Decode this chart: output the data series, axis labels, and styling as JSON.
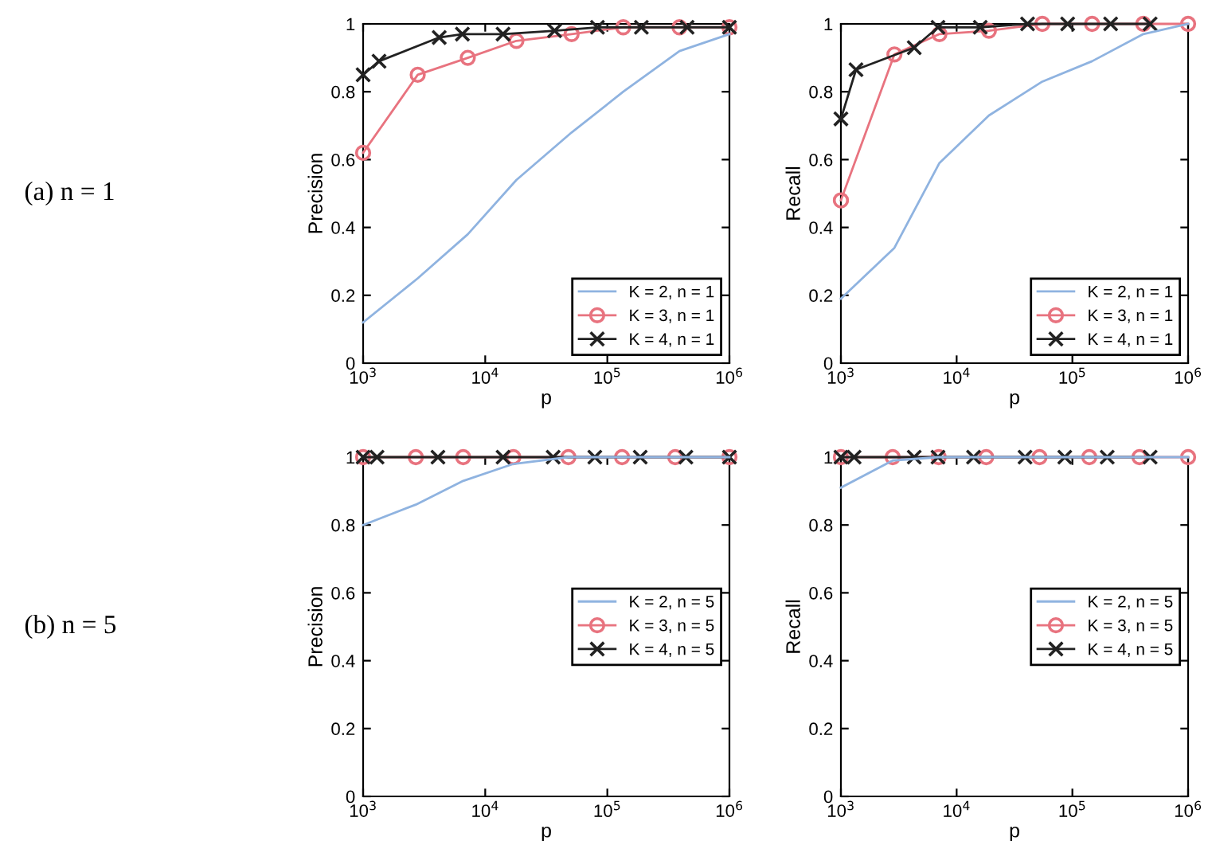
{
  "chart_data": [
    {
      "type": "line",
      "xlabel": "p",
      "ylabel": "Precision",
      "annotations": [
        "(a) n = 1"
      ],
      "log": "x",
      "xlim": [
        1000,
        1000000
      ],
      "ylim": [
        0,
        1
      ],
      "xticks": [
        {
          "value": 1000,
          "label": "10$^{3}$"
        },
        {
          "value": 10000,
          "label": "10$^{4}$"
        },
        {
          "value": 100000,
          "label": "10$^{5}$"
        },
        {
          "value": 1000000,
          "label": "10$^{6}$"
        }
      ],
      "yticks": [
        0,
        0.2,
        0.4,
        0.6,
        0.8,
        1
      ],
      "grid": false,
      "legend": "bottom right",
      "line_style": "solid",
      "series": [
        {
          "name": "K = 2, n = 1",
          "color": "#8fb3e0",
          "marker": "none",
          "x": [
            1000,
            2800,
            7200,
            18000,
            51000,
            135000,
            390000,
            1000000
          ],
          "values": [
            0.12,
            0.25,
            0.38,
            0.54,
            0.68,
            0.8,
            0.92,
            0.97
          ]
        },
        {
          "name": "K = 3, n = 1",
          "color": "#e8737f",
          "marker": "circle",
          "x": [
            1000,
            2800,
            7200,
            18000,
            51000,
            135000,
            390000,
            1000000
          ],
          "values": [
            0.62,
            0.85,
            0.9,
            0.95,
            0.97,
            0.99,
            0.99,
            0.99
          ]
        },
        {
          "name": "K = 4, n = 1",
          "color": "#222222",
          "marker": "cross",
          "x": [
            1000,
            1350,
            4200,
            6500,
            14000,
            37000,
            83000,
            190000,
            450000,
            1000000
          ],
          "values": [
            0.85,
            0.89,
            0.96,
            0.97,
            0.97,
            0.98,
            0.99,
            0.99,
            0.99,
            0.99
          ]
        }
      ]
    },
    {
      "type": "line",
      "xlabel": "p",
      "ylabel": "Recall",
      "log": "x",
      "xlim": [
        1000,
        1000000
      ],
      "ylim": [
        0,
        1
      ],
      "xticks": [
        {
          "value": 1000,
          "label": "10$^{3}$"
        },
        {
          "value": 10000,
          "label": "10$^{4}$"
        },
        {
          "value": 100000,
          "label": "10$^{5}$"
        },
        {
          "value": 1000000,
          "label": "10$^{6}$"
        }
      ],
      "yticks": [
        0,
        0.2,
        0.4,
        0.6,
        0.8,
        1
      ],
      "grid": false,
      "legend": "bottom right",
      "line_style": "solid",
      "series": [
        {
          "name": "K = 2, n = 1",
          "color": "#8fb3e0",
          "marker": "none",
          "x": [
            1000,
            2900,
            7100,
            19000,
            55000,
            148000,
            410000,
            1000000
          ],
          "values": [
            0.19,
            0.34,
            0.59,
            0.73,
            0.83,
            0.89,
            0.97,
            1
          ]
        },
        {
          "name": "K = 3, n = 1",
          "color": "#e8737f",
          "marker": "circle",
          "x": [
            1000,
            2900,
            7100,
            19000,
            55000,
            148000,
            410000,
            1000000
          ],
          "values": [
            0.48,
            0.91,
            0.97,
            0.98,
            1,
            1,
            1,
            1
          ]
        },
        {
          "name": "K = 4, n = 1",
          "color": "#222222",
          "marker": "cross",
          "x": [
            1000,
            1350,
            4300,
            6900,
            16000,
            41000,
            91000,
            214000,
            470000
          ],
          "values": [
            0.72,
            0.865,
            0.93,
            0.99,
            0.99,
            1,
            1,
            1,
            1
          ]
        }
      ]
    },
    {
      "type": "line",
      "xlabel": "p",
      "ylabel": "Precision",
      "annotations": [
        "(b) n = 5"
      ],
      "log": "x",
      "xlim": [
        1000,
        1000000
      ],
      "ylim": [
        0,
        1
      ],
      "xticks": [
        {
          "value": 1000,
          "label": "10$^{3}$"
        },
        {
          "value": 10000,
          "label": "10$^{4}$"
        },
        {
          "value": 100000,
          "label": "10$^{5}$"
        },
        {
          "value": 1000000,
          "label": "10$^{6}$"
        }
      ],
      "yticks": [
        0,
        0.2,
        0.4,
        0.6,
        0.8,
        1
      ],
      "grid": false,
      "legend": "right",
      "line_style": "solid",
      "series": [
        {
          "name": "K = 2, n = 5",
          "color": "#8fb3e0",
          "marker": "none",
          "x": [
            1000,
            2700,
            6600,
            17000,
            48000,
            132000,
            360000,
            1000000
          ],
          "values": [
            0.8,
            0.86,
            0.93,
            0.98,
            1,
            1,
            1,
            1
          ]
        },
        {
          "name": "K = 3, n = 5",
          "color": "#e8737f",
          "marker": "circle",
          "x": [
            1000,
            2700,
            6600,
            17000,
            48000,
            132000,
            360000,
            1000000
          ],
          "values": [
            1,
            1,
            1,
            1,
            1,
            1,
            1,
            1
          ]
        },
        {
          "name": "K = 4, n = 5",
          "color": "#222222",
          "marker": "cross",
          "x": [
            1000,
            1300,
            4100,
            14000,
            36000,
            79000,
            186000,
            440000,
            1000000
          ],
          "values": [
            1,
            1,
            1,
            1,
            1,
            1,
            1,
            1,
            1
          ]
        }
      ]
    },
    {
      "type": "line",
      "xlabel": "p",
      "ylabel": "Recall",
      "log": "x",
      "xlim": [
        1000,
        1000000
      ],
      "ylim": [
        0,
        1
      ],
      "xticks": [
        {
          "value": 1000,
          "label": "10$^{3}$"
        },
        {
          "value": 10000,
          "label": "10$^{4}$"
        },
        {
          "value": 100000,
          "label": "10$^{5}$"
        },
        {
          "value": 1000000,
          "label": "10$^{6}$"
        }
      ],
      "yticks": [
        0,
        0.2,
        0.4,
        0.6,
        0.8,
        1
      ],
      "grid": false,
      "legend": "right",
      "line_style": "solid",
      "series": [
        {
          "name": "K = 2, n = 5",
          "color": "#8fb3e0",
          "marker": "none",
          "x": [
            1000,
            2800,
            7000,
            18000,
            52000,
            140000,
            380000,
            1000000
          ],
          "values": [
            0.91,
            0.99,
            1,
            1,
            1,
            1,
            1,
            1
          ]
        },
        {
          "name": "K = 3, n = 5",
          "color": "#e8737f",
          "marker": "circle",
          "x": [
            1000,
            2800,
            7000,
            18000,
            52000,
            140000,
            380000,
            1000000
          ],
          "values": [
            1,
            1,
            1,
            1,
            1,
            1,
            1,
            1
          ]
        },
        {
          "name": "K = 4, n = 5",
          "color": "#222222",
          "marker": "cross",
          "x": [
            1000,
            1300,
            4300,
            6900,
            14000,
            39000,
            86000,
            200000,
            470000
          ],
          "values": [
            1,
            1,
            1,
            1,
            1,
            1,
            1,
            1,
            1
          ]
        }
      ]
    }
  ]
}
